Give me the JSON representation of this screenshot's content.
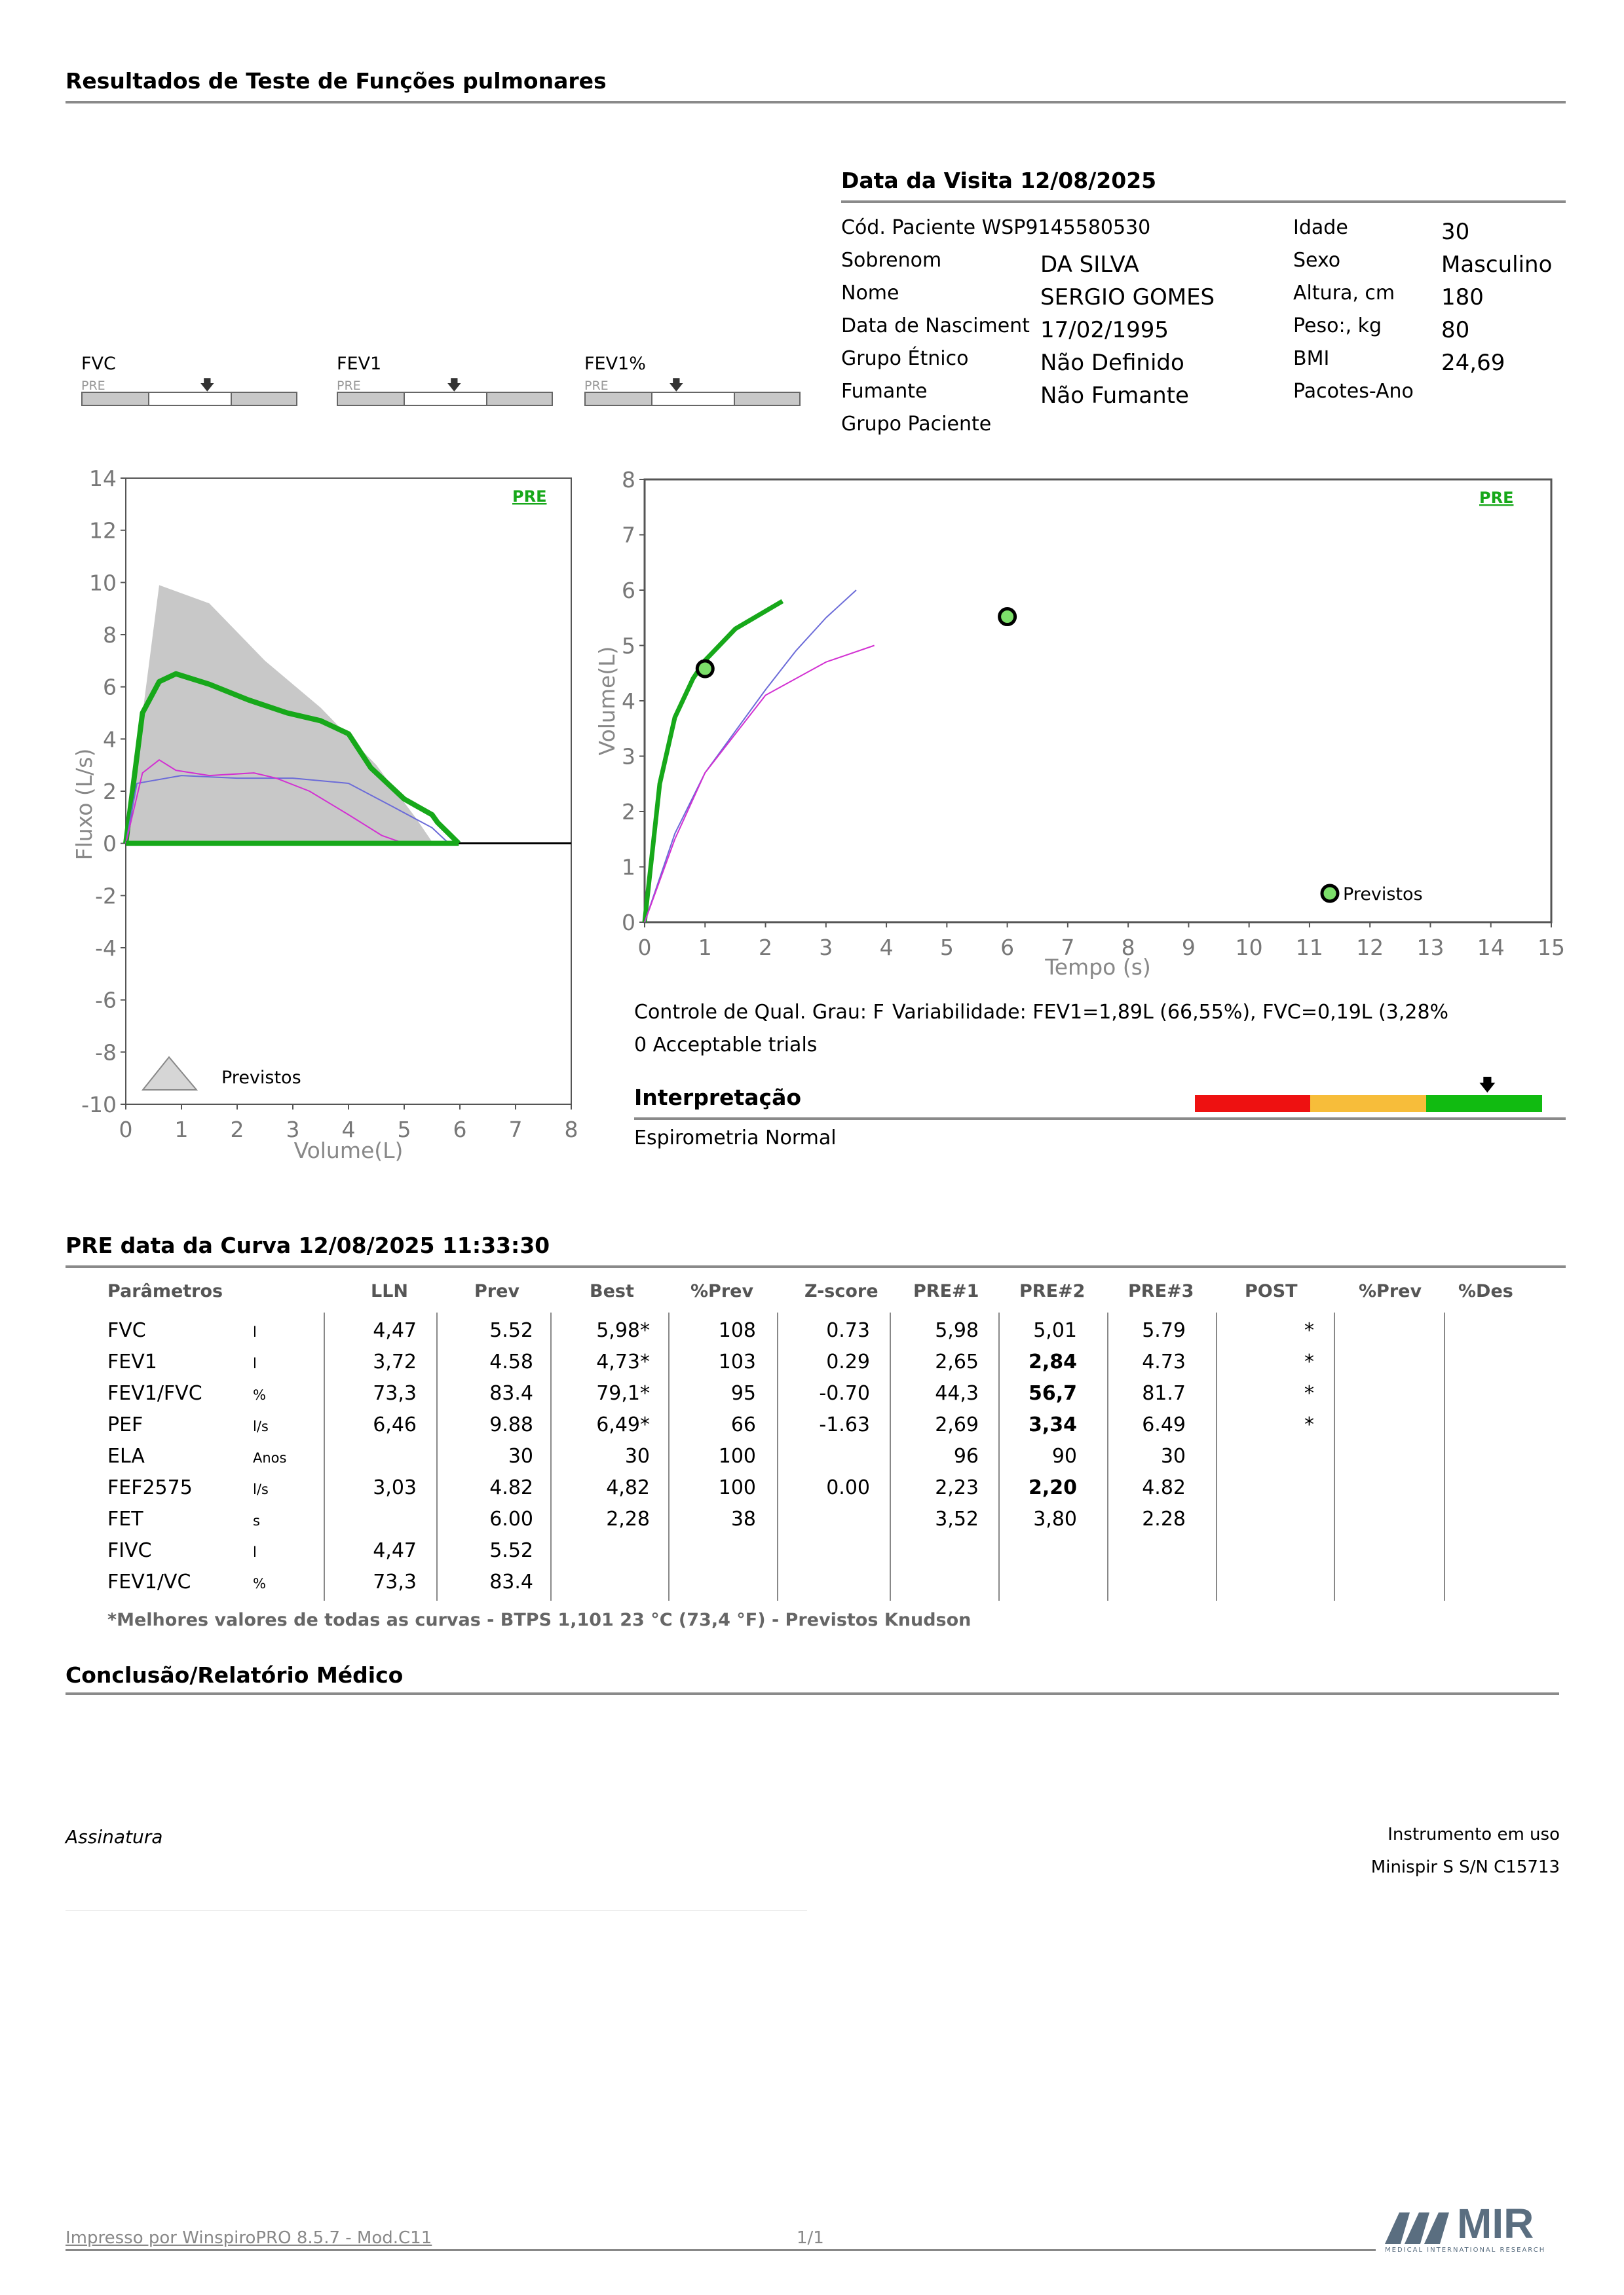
{
  "report_title": "Resultados de Teste de Funções pulmonares",
  "visit": {
    "title": "Data da Visita 12/08/2025",
    "left": [
      {
        "label": "Cód. Paciente WSP9145580530",
        "value": ""
      },
      {
        "label": "Sobrenom",
        "value": "DA SILVA"
      },
      {
        "label": "Nome",
        "value": "SERGIO GOMES"
      },
      {
        "label": "Data de Nasciment",
        "value": "17/02/1995"
      },
      {
        "label": "Grupo Étnico",
        "value": "Não Definido"
      },
      {
        "label": "Fumante",
        "value": "Não Fumante"
      },
      {
        "label": "Grupo Paciente",
        "value": ""
      }
    ],
    "right": [
      {
        "label": "Idade",
        "value": "30"
      },
      {
        "label": "Sexo",
        "value": "Masculino"
      },
      {
        "label": "Altura, cm",
        "value": "180"
      },
      {
        "label": "Peso:, kg",
        "value": "80"
      },
      {
        "label": "BMI",
        "value": "24,69"
      },
      {
        "label": "Pacotes-Ano",
        "value": ""
      }
    ]
  },
  "indicators": [
    {
      "label": "FVC",
      "pre": "PRE",
      "marker": 0.58
    },
    {
      "label": "FEV1",
      "pre": "PRE",
      "marker": 0.54
    },
    {
      "label": "FEV1%",
      "pre": "PRE",
      "marker": 0.42
    }
  ],
  "flow_chart": {
    "pre_label": "PRE",
    "ylabel": "Fluxo (L/s)",
    "xlabel": "Volume(L)",
    "legend": "Previstos",
    "y_ticks": [
      "14",
      "12",
      "10",
      "8",
      "6",
      "4",
      "2",
      "0",
      "-2",
      "-4",
      "-6",
      "-8",
      "-10"
    ],
    "x_ticks": [
      "0",
      "1",
      "2",
      "3",
      "4",
      "5",
      "6",
      "7",
      "8"
    ]
  },
  "time_chart": {
    "pre_label": "PRE",
    "ylabel": "Volume(L)",
    "xlabel": "Tempo (s)",
    "legend": "Previstos",
    "y_ticks": [
      "8",
      "7",
      "6",
      "5",
      "4",
      "3",
      "2",
      "1",
      "0"
    ],
    "x_ticks": [
      "0",
      "1",
      "2",
      "3",
      "4",
      "5",
      "6",
      "7",
      "8",
      "9",
      "10",
      "11",
      "12",
      "13",
      "14",
      "15"
    ]
  },
  "chart_data": [
    {
      "type": "line",
      "title": "",
      "xlabel": "Volume(L)",
      "ylabel": "Fluxo (L/s)",
      "xlim": [
        0,
        8
      ],
      "ylim": [
        -10,
        14
      ],
      "series": [
        {
          "name": "Previstos",
          "color": "#c8c8c8",
          "x": [
            0,
            0.6,
            1.5,
            2.5,
            3.5,
            4.5,
            5.2,
            5.52
          ],
          "y": [
            0,
            9.9,
            9.2,
            7.0,
            5.2,
            3.0,
            1.0,
            0
          ]
        },
        {
          "color": "#17a81a",
          "x": [
            0,
            0.15,
            0.3,
            0.6,
            0.9,
            1.5,
            2.2,
            2.9,
            3.5,
            4.0,
            4.4,
            5.0,
            5.5,
            5.6,
            5.98
          ],
          "y": [
            0,
            2.5,
            5.0,
            6.2,
            6.5,
            6.1,
            5.5,
            5.0,
            4.7,
            4.2,
            2.9,
            1.7,
            1.1,
            0.8,
            0
          ]
        },
        {
          "color": "#6b6bd8",
          "x": [
            0,
            0.2,
            1.0,
            2.0,
            3.0,
            4.0,
            4.8,
            5.5,
            5.8
          ],
          "y": [
            0,
            2.3,
            2.6,
            2.5,
            2.5,
            2.3,
            1.4,
            0.6,
            0
          ]
        },
        {
          "color": "#d230d2",
          "x": [
            0,
            0.3,
            0.6,
            0.9,
            1.5,
            2.3,
            2.7,
            3.3,
            4.0,
            4.6,
            5.0
          ],
          "y": [
            0,
            2.7,
            3.2,
            2.8,
            2.6,
            2.7,
            2.5,
            2.0,
            1.1,
            0.3,
            0
          ]
        }
      ]
    },
    {
      "type": "line",
      "title": "",
      "xlabel": "Tempo (s)",
      "ylabel": "Volume(L)",
      "xlim": [
        0,
        15
      ],
      "ylim": [
        0,
        8
      ],
      "series": [
        {
          "color": "#17a81a",
          "x": [
            0,
            0.25,
            0.5,
            0.8,
            1.0,
            1.5,
            2.28
          ],
          "y": [
            0,
            2.5,
            3.7,
            4.4,
            4.73,
            5.3,
            5.8
          ]
        },
        {
          "color": "#6b6bd8",
          "x": [
            0,
            0.5,
            1.0,
            2.0,
            2.5,
            3.0,
            3.5
          ],
          "y": [
            0,
            1.6,
            2.7,
            4.2,
            4.9,
            5.5,
            6.0
          ]
        },
        {
          "color": "#d230d2",
          "x": [
            0,
            0.5,
            1.0,
            2.0,
            3.0,
            3.8
          ],
          "y": [
            0,
            1.5,
            2.7,
            4.1,
            4.7,
            5.0
          ]
        }
      ],
      "markers": [
        {
          "name": "Previstos",
          "x": 1.0,
          "y": 4.58
        },
        {
          "name": "Previstos",
          "x": 6.0,
          "y": 5.52
        }
      ]
    }
  ],
  "quality": {
    "grade": "Controle de Qual. Grau: F",
    "variability": "Variabilidade: FEV1=1,89L (66,55%), FVC=0,19L (3,28%",
    "trials": "0 Acceptable trials"
  },
  "interpretation": {
    "title": "Interpretação",
    "text": "Espirometria Normal",
    "scale_colors": [
      "#ee1111",
      "#f7bd3a",
      "#11bb11"
    ],
    "marker": 0.84
  },
  "curve": {
    "title": "PRE data da Curva 12/08/2025   11:33:30",
    "headers": [
      "Parâmetros",
      "LLN",
      "Prev",
      "Best",
      "%Prev",
      "Z-score",
      "PRE#1",
      "PRE#2",
      "PRE#3",
      "POST",
      "%Prev",
      "%Des"
    ],
    "rows": [
      {
        "p": "FVC",
        "u": "l",
        "lln": "4,47",
        "prev": "5.52",
        "best": "5,98*",
        "pprev": "108",
        "z": "0.73",
        "p1": "5,98",
        "p2": "5,01",
        "p2b": false,
        "p3": "5.79",
        "post": "*"
      },
      {
        "p": "FEV1",
        "u": "l",
        "lln": "3,72",
        "prev": "4.58",
        "best": "4,73*",
        "pprev": "103",
        "z": "0.29",
        "p1": "2,65",
        "p2": "2,84",
        "p2b": true,
        "p3": "4.73",
        "post": "*"
      },
      {
        "p": "FEV1/FVC",
        "u": "%",
        "lln": "73,3",
        "prev": "83.4",
        "best": "79,1*",
        "pprev": "95",
        "z": "-0.70",
        "p1": "44,3",
        "p2": "56,7",
        "p2b": true,
        "p3": "81.7",
        "post": "*"
      },
      {
        "p": "PEF",
        "u": "l/s",
        "lln": "6,46",
        "prev": "9.88",
        "best": "6,49*",
        "pprev": "66",
        "z": "-1.63",
        "p1": "2,69",
        "p2": "3,34",
        "p2b": true,
        "p3": "6.49",
        "post": "*"
      },
      {
        "p": "ELA",
        "u": "Anos",
        "lln": "",
        "prev": "30",
        "best": "30",
        "pprev": "100",
        "z": "",
        "p1": "96",
        "p2": "90",
        "p2b": false,
        "p3": "30",
        "post": ""
      },
      {
        "p": "FEF2575",
        "u": "l/s",
        "lln": "3,03",
        "prev": "4.82",
        "best": "4,82",
        "pprev": "100",
        "z": "0.00",
        "p1": "2,23",
        "p2": "2,20",
        "p2b": true,
        "p3": "4.82",
        "post": ""
      },
      {
        "p": "FET",
        "u": "s",
        "lln": "",
        "prev": "6.00",
        "best": "2,28",
        "pprev": "38",
        "z": "",
        "p1": "3,52",
        "p2": "3,80",
        "p2b": false,
        "p3": "2.28",
        "post": ""
      },
      {
        "p": "FIVC",
        "u": "l",
        "lln": "4,47",
        "prev": "5.52",
        "best": "",
        "pprev": "",
        "z": "",
        "p1": "",
        "p2": "",
        "p2b": false,
        "p3": "",
        "post": ""
      },
      {
        "p": "FEV1/VC",
        "u": "%",
        "lln": "73,3",
        "prev": "83.4",
        "best": "",
        "pprev": "",
        "z": "",
        "p1": "",
        "p2": "",
        "p2b": false,
        "p3": "",
        "post": ""
      }
    ],
    "footnote": "*Melhores valores de todas as curvas - BTPS  1,101  23 °C  (73,4 °F) - Previstos Knudson"
  },
  "conclusion": {
    "title": "Conclusão/Relatório Médico"
  },
  "signature": "Assinatura",
  "instrument": {
    "label": "Instrumento em uso",
    "value": "Minispir S S/N C15713"
  },
  "footer": {
    "printed": "Impresso por WinspiroPRO  8.5.7 - Mod.C11",
    "page": "1/1",
    "logo": "MIR",
    "logo_sub": "MEDICAL INTERNATIONAL RESEARCH"
  }
}
